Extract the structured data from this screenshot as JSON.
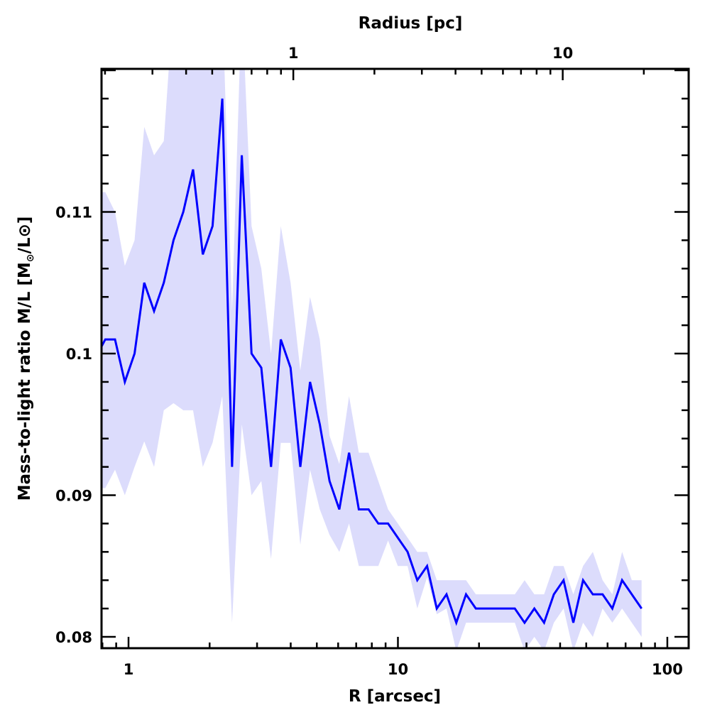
{
  "chart_data": {
    "type": "line",
    "title": "",
    "xlabel": "R [arcsec]",
    "xlabel_top": "Radius [pc]",
    "ylabel": "Mass-to-light ratio M/L [M⊙/L⊙]",
    "ylabel_main": "Mass-to-light ratio M/L [M",
    "ylabel_sub": "⊙",
    "ylabel_end": "/L⊙]",
    "xscale": "log",
    "xlim": [
      0.794,
      120
    ],
    "ylim": [
      0.0792,
      0.1201
    ],
    "arcsec_per_pc": 4.09,
    "x_ticks": [
      {
        "value": 1,
        "label": "1"
      },
      {
        "value": 10,
        "label": "10"
      },
      {
        "value": 100,
        "label": "100"
      }
    ],
    "x_top_ticks": [
      {
        "value": 1,
        "label": "1"
      },
      {
        "value": 10,
        "label": "10"
      }
    ],
    "y_ticks": [
      {
        "value": 0.08,
        "label": "0.08"
      },
      {
        "value": 0.09,
        "label": "0.09"
      },
      {
        "value": 0.1,
        "label": "0.1"
      },
      {
        "value": 0.11,
        "label": "0.11"
      }
    ],
    "grid": false,
    "line_color": "#0000ff",
    "band_color": "#dcdcfc",
    "x": [
      0.82,
      0.891,
      0.969,
      1.053,
      1.144,
      1.244,
      1.352,
      1.469,
      1.597,
      1.736,
      1.887,
      2.051,
      2.229,
      2.423,
      2.633,
      2.862,
      3.111,
      3.381,
      3.675,
      3.995,
      4.342,
      4.719,
      5.129,
      5.575,
      6.06,
      6.586,
      7.159,
      7.781,
      8.457,
      9.192,
      9.991,
      10.86,
      11.8,
      12.83,
      13.94,
      15.15,
      16.47,
      17.9,
      19.46,
      21.15,
      22.99,
      24.99,
      27.16,
      29.52,
      32.09,
      34.88,
      37.91,
      41.2,
      44.78,
      48.67,
      52.9,
      57.5,
      62.5,
      67.93,
      73.83,
      80.25
    ],
    "series": [
      {
        "name": "M/L",
        "values": [
          0.101,
          0.101,
          0.098,
          0.1,
          0.105,
          0.103,
          0.105,
          0.108,
          0.11,
          0.113,
          0.107,
          0.109,
          0.118,
          0.092,
          0.114,
          0.1,
          0.099,
          0.092,
          0.101,
          0.099,
          0.092,
          0.098,
          0.095,
          0.091,
          0.089,
          0.093,
          0.089,
          0.089,
          0.088,
          0.088,
          0.087,
          0.086,
          0.084,
          0.085,
          0.082,
          0.083,
          0.081,
          0.083,
          0.082,
          0.082,
          0.082,
          0.082,
          0.082,
          0.081,
          0.082,
          0.081,
          0.083,
          0.084,
          0.081,
          0.084,
          0.083,
          0.083,
          0.082,
          0.084,
          0.083,
          0.082
        ]
      },
      {
        "name": "upper",
        "values": [
          0.1114,
          0.11,
          0.1062,
          0.108,
          0.116,
          0.114,
          0.115,
          0.125,
          0.125,
          0.125,
          0.125,
          0.125,
          0.125,
          0.103,
          0.125,
          0.109,
          0.106,
          0.1,
          0.109,
          0.105,
          0.0988,
          0.104,
          0.101,
          0.0942,
          0.0922,
          0.097,
          0.093,
          0.093,
          0.091,
          0.089,
          0.088,
          0.087,
          0.086,
          0.086,
          0.084,
          0.084,
          0.084,
          0.084,
          0.083,
          0.083,
          0.083,
          0.083,
          0.083,
          0.084,
          0.083,
          0.083,
          0.085,
          0.085,
          0.083,
          0.085,
          0.086,
          0.084,
          0.083,
          0.086,
          0.084,
          0.084
        ]
      },
      {
        "name": "lower",
        "values": [
          0.0905,
          0.0918,
          0.09,
          0.092,
          0.0938,
          0.092,
          0.096,
          0.0965,
          0.096,
          0.096,
          0.092,
          0.0937,
          0.097,
          0.081,
          0.095,
          0.09,
          0.091,
          0.0855,
          0.0937,
          0.0937,
          0.0865,
          0.0918,
          0.089,
          0.0872,
          0.086,
          0.088,
          0.085,
          0.085,
          0.085,
          0.0868,
          0.085,
          0.085,
          0.082,
          0.0842,
          0.0816,
          0.082,
          0.079,
          0.081,
          0.081,
          0.081,
          0.081,
          0.081,
          0.081,
          0.079,
          0.08,
          0.079,
          0.081,
          0.082,
          0.079,
          0.081,
          0.08,
          0.082,
          0.081,
          0.082,
          0.081,
          0.08
        ]
      }
    ]
  }
}
